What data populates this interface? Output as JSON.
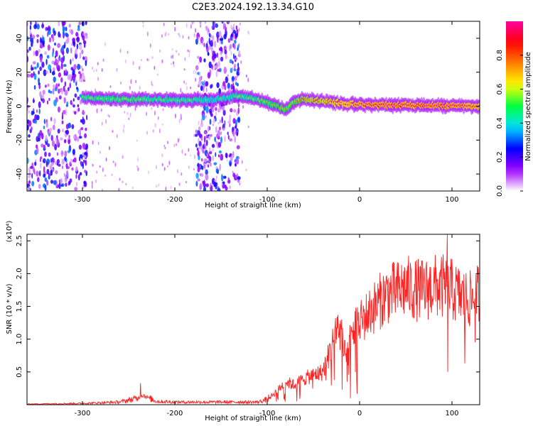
{
  "title": "C2E3.2024.192.13.34.G10",
  "chart_data": [
    {
      "type": "heatmap",
      "xlabel": "Height of straight line (km)",
      "ylabel": "Frequency (Hz)",
      "xlim": [
        -360,
        130
      ],
      "ylim": [
        -50,
        50
      ],
      "xticks": [
        -300,
        -200,
        -100,
        0,
        100
      ],
      "yticks": [
        -40,
        -20,
        0,
        20,
        40
      ],
      "colorbar": {
        "label": "Normalized spectral amplitude",
        "range": [
          0,
          1
        ],
        "ticks": [
          "0.0",
          "0.2",
          "0.4",
          "0.6",
          "0.8"
        ],
        "colors": [
          "#ffffff",
          "#a000ff",
          "#0000ff",
          "#00e0ff",
          "#00ff40",
          "#ffff00",
          "#ff8000",
          "#ff0000",
          "#ff00a0"
        ]
      },
      "ridge": {
        "x": [
          -300,
          -280,
          -250,
          -220,
          -180,
          -160,
          -130,
          -110,
          -95,
          -80,
          -70,
          -60,
          -40,
          -20,
          0,
          20,
          40,
          60,
          80,
          100,
          130
        ],
        "frequency": [
          5,
          4.5,
          4,
          4,
          3.5,
          3.8,
          6,
          4,
          1,
          -2,
          3,
          4,
          3,
          1.5,
          1,
          0.5,
          0.5,
          0.5,
          0.5,
          0,
          0
        ],
        "amplitude": [
          0.45,
          0.5,
          0.5,
          0.45,
          0.45,
          0.4,
          0.45,
          0.5,
          0.55,
          0.6,
          0.6,
          0.7,
          0.75,
          0.8,
          0.85,
          0.9,
          0.9,
          0.9,
          0.9,
          0.9,
          0.85
        ]
      },
      "noise_bands_km": [
        [
          -360,
          -295
        ],
        [
          -177,
          -130
        ]
      ]
    },
    {
      "type": "line",
      "xlabel": "Height of straight line (km)",
      "ylabel": "SNR (10 * v/v)",
      "multiplier": "(x10⁴)",
      "xlim": [
        -360,
        130
      ],
      "ylim": [
        0,
        2.6
      ],
      "xticks": [
        -300,
        -200,
        -100,
        0,
        100
      ],
      "yticks": [
        0.5,
        1.0,
        1.5,
        2.0,
        2.5
      ],
      "color": "#ff2020",
      "x": [
        -360,
        -300,
        -260,
        -240,
        -235,
        -220,
        -200,
        -150,
        -110,
        -100,
        -90,
        -80,
        -70,
        -60,
        -50,
        -40,
        -30,
        -25,
        -20,
        -15,
        -10,
        -5,
        0,
        10,
        20,
        30,
        40,
        50,
        60,
        70,
        80,
        90,
        100,
        110,
        120,
        130
      ],
      "y": [
        0.01,
        0.02,
        0.04,
        0.1,
        0.15,
        0.05,
        0.04,
        0.04,
        0.04,
        0.08,
        0.2,
        0.35,
        0.3,
        0.4,
        0.45,
        0.5,
        0.9,
        1.2,
        1.1,
        0.6,
        1.0,
        1.2,
        1.25,
        1.4,
        1.55,
        1.7,
        1.72,
        1.8,
        1.75,
        1.75,
        1.8,
        1.8,
        1.75,
        1.65,
        1.6,
        1.7
      ],
      "spikes": [
        {
          "x": -237,
          "y": 0.33
        },
        {
          "x": -16,
          "y": 0.98
        },
        {
          "x": -10,
          "y": 0.1
        },
        {
          "x": 95,
          "y": 2.6
        },
        {
          "x": 95.5,
          "y": 0.5
        },
        {
          "x": 114,
          "y": 0.63
        },
        {
          "x": 125,
          "y": 0.95
        }
      ]
    }
  ]
}
